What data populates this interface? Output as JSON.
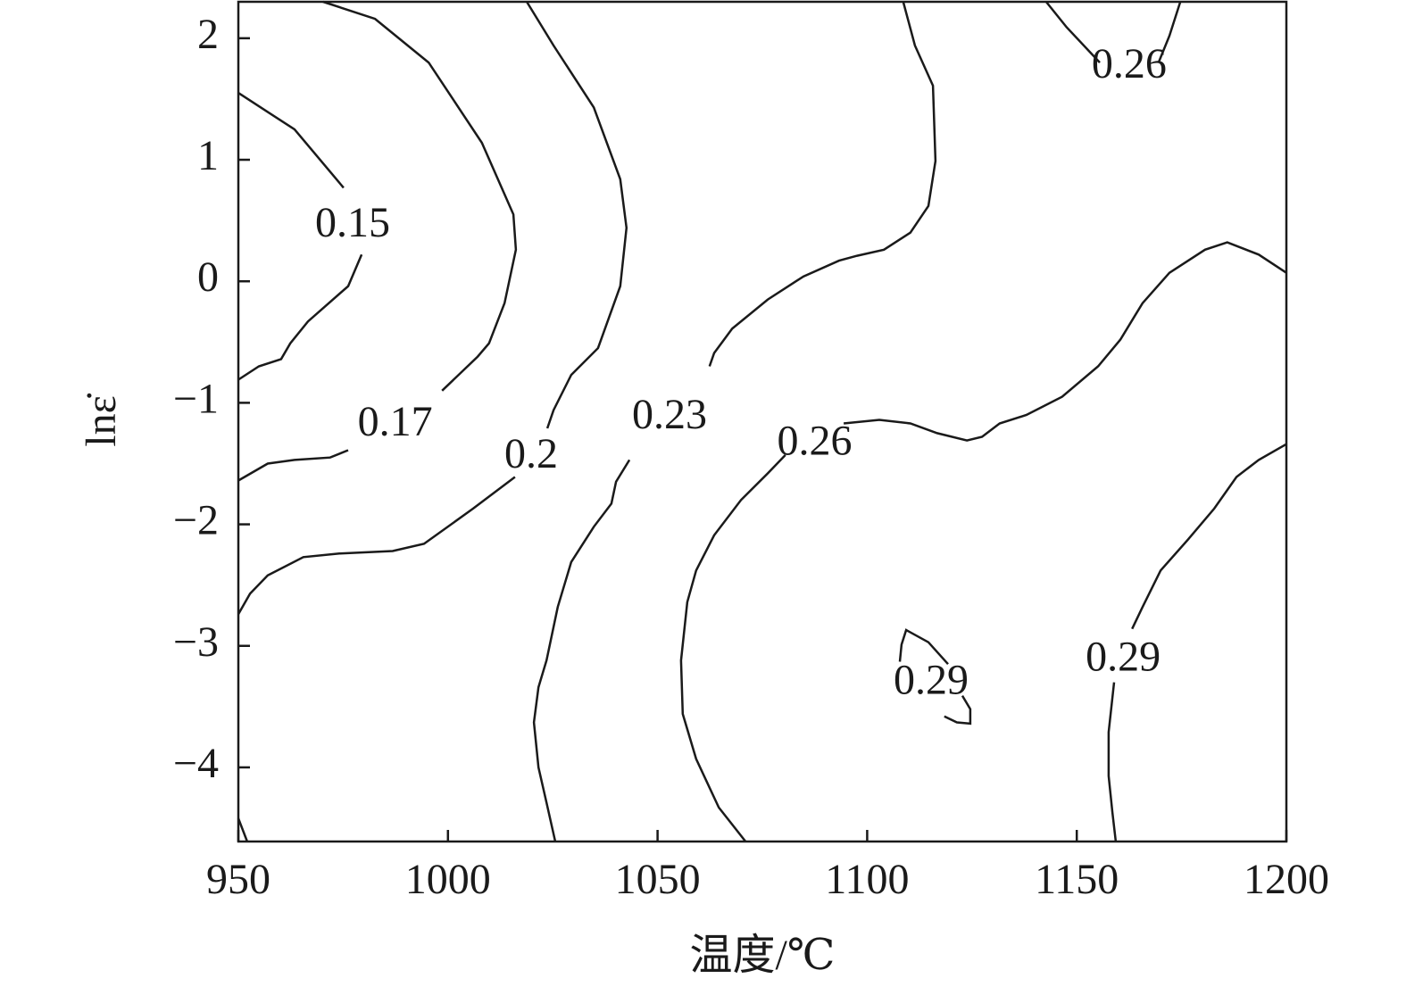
{
  "chart_data": {
    "type": "contour",
    "x_label": "温度/℃",
    "y_label": "lnε̇",
    "xlim": [
      950,
      1200
    ],
    "ylim": [
      -4.61,
      2.3
    ],
    "xticks": [
      950,
      1000,
      1050,
      1100,
      1150,
      1200
    ],
    "yticks": [
      {
        "value": -4,
        "label": "−4"
      },
      {
        "value": -3,
        "label": "−3"
      },
      {
        "value": -2,
        "label": "−2"
      },
      {
        "value": -1,
        "label": "−1"
      },
      0,
      1,
      2
    ],
    "color": "#1a1a1a",
    "contours": [
      {
        "level": 0.15,
        "x": [
          950,
          963.4,
          975.1,
          null,
          979.4,
          976.2,
          966.6,
          962.4,
          960.2,
          954.9,
          950
        ],
        "y": [
          1.55,
          1.25,
          0.77,
          null,
          0.22,
          -0.04,
          -0.33,
          -0.51,
          -0.64,
          -0.7,
          -0.81
        ]
      },
      {
        "level": 0.17,
        "x": [
          970.2,
          982.6,
          995.4,
          1008.1,
          1015.6,
          1016.2,
          1013.5,
          1009.8,
          1007.1,
          998.6,
          null,
          976.2,
          971.9,
          963.4,
          957.0,
          950
        ],
        "y": [
          2.3,
          2.16,
          1.8,
          1.14,
          0.55,
          0.26,
          -0.18,
          -0.51,
          -0.62,
          -0.9,
          null,
          -1.39,
          -1.45,
          -1.47,
          -1.5,
          -1.64
        ]
      },
      {
        "level": 0.2,
        "x": [
          1018.8,
          1025.2,
          1034.8,
          1041.1,
          1042.6,
          1041.1,
          1035.8,
          1029.4,
          1025.2,
          1023.7,
          null,
          1016.0,
          1006.0,
          994.3,
          986.8,
          974.1,
          965.5,
          957.0,
          952.8,
          950
        ],
        "y": [
          2.3,
          1.94,
          1.43,
          0.84,
          0.44,
          -0.04,
          -0.55,
          -0.77,
          -1.06,
          -1.21,
          null,
          -1.61,
          -1.87,
          -2.16,
          -2.22,
          -2.24,
          -2.27,
          -2.42,
          -2.57,
          -2.74
        ]
      },
      {
        "level": 0.23,
        "x": [
          1108.6,
          1111.4,
          1115.7,
          1116.3,
          1114.6,
          1110.3,
          1104.0,
          1097.6,
          1093.3,
          1084.8,
          1076.3,
          1067.8,
          1063.5,
          1062.4,
          null,
          1043.3,
          1040.1,
          1039.0,
          1034.8,
          1029.4,
          1026.2,
          1023.5,
          1021.6,
          1020.5,
          1021.6,
          1023.5,
          1025.6
        ],
        "y": [
          2.3,
          1.94,
          1.61,
          0.99,
          0.62,
          0.4,
          0.26,
          0.21,
          0.17,
          0.04,
          -0.15,
          -0.39,
          -0.59,
          -0.7,
          null,
          -1.47,
          -1.65,
          -1.83,
          -2.02,
          -2.31,
          -2.68,
          -3.12,
          -3.34,
          -3.63,
          -4.0,
          -4.29,
          -4.61
        ]
      },
      {
        "level": 0.26,
        "x": [
          1200,
          1193.4,
          1185.9,
          1180.6,
          1172.1,
          1165.7,
          1160.4,
          1155.1,
          1146.5,
          1138.0,
          1131.6,
          1127.4,
          1123.8,
          1116.7,
          1110.3,
          1102.9,
          1094.4,
          null,
          1080.5,
          1076.3,
          1069.9,
          1063.5,
          1059.2,
          1057.1,
          1055.6,
          1056.0,
          1059.2,
          1064.6,
          1071.0
        ],
        "y": [
          0.07,
          0.22,
          0.32,
          0.26,
          0.07,
          -0.18,
          -0.48,
          -0.7,
          -0.95,
          -1.1,
          -1.17,
          -1.28,
          -1.31,
          -1.25,
          -1.17,
          -1.14,
          -1.17,
          null,
          -1.43,
          -1.58,
          -1.8,
          -2.09,
          -2.38,
          -2.64,
          -3.12,
          -3.56,
          -3.93,
          -4.33,
          -4.61
        ]
      },
      {
        "level": 0.26,
        "x": [
          1142.7,
          1147.6,
          1155.5,
          null,
          1169.5,
          1172.1,
          1174.7
        ],
        "y": [
          2.3,
          2.09,
          1.8,
          null,
          1.8,
          2.02,
          2.3
        ]
      },
      {
        "level": 0.29,
        "x": [
          1200,
          1193.4,
          1188.1,
          1182.8,
          1176.4,
          1170.0,
          1165.7,
          1163.2,
          null,
          1158.9,
          1157.6,
          1157.6,
          1158.5,
          1159.3
        ],
        "y": [
          -1.34,
          -1.47,
          -1.61,
          -1.87,
          -2.13,
          -2.38,
          -2.68,
          -2.86,
          null,
          -3.3,
          -3.71,
          -4.07,
          -4.37,
          -4.61
        ]
      },
      {
        "level": 0.29,
        "x": [
          1119.3,
          1114.6,
          1109.3,
          1108.2,
          1107.8,
          null,
          1122.7,
          1124.6,
          1124.6,
          1121.4,
          1118.4
        ],
        "y": [
          -3.15,
          -2.97,
          -2.87,
          -2.99,
          -3.13,
          null,
          -3.41,
          -3.52,
          -3.64,
          -3.63,
          -3.58
        ]
      },
      {
        "level": null,
        "x": [
          950,
          952.1
        ],
        "y": [
          -4.42,
          -4.61
        ]
      }
    ]
  }
}
